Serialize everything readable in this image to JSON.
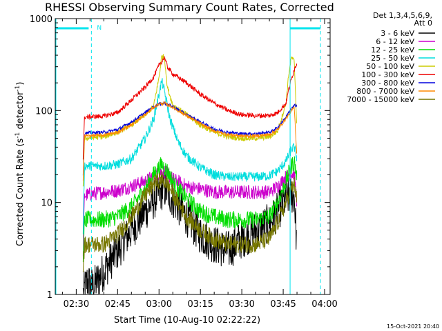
{
  "chart_data": {
    "type": "line",
    "title": "RHESSI Observing Summary Count Rates, Corrected",
    "xlabel": "Start Time (10-Aug-10 02:22:22)",
    "ylabel": "Corrected Count Rate (s",
    "ylabel_sup1": "-1",
    "ylabel_mid": " detector",
    "ylabel_sup2": "-1",
    "ylabel_end": ")",
    "y_scale": "log",
    "ylim": [
      1,
      1000
    ],
    "xlim_minutes": [
      22.4,
      122
    ],
    "x_ticks": [
      {
        "label": "02:30",
        "min": 30
      },
      {
        "label": "02:45",
        "min": 45
      },
      {
        "label": "03:00",
        "min": 60
      },
      {
        "label": "03:15",
        "min": 75
      },
      {
        "label": "03:30",
        "min": 90
      },
      {
        "label": "03:45",
        "min": 105
      },
      {
        "label": "04:00",
        "min": 120
      }
    ],
    "y_ticks": [
      {
        "label": "1",
        "value": 1
      },
      {
        "label": "10",
        "value": 10
      },
      {
        "label": "100",
        "value": 100
      },
      {
        "label": "1000",
        "value": 1000
      }
    ],
    "legend_header": [
      "Det 1,3,4,5,6,9,",
      "Att 0"
    ],
    "timestamp": "15-Oct-2021 20:40",
    "flag_label": "N",
    "legend_placement": "outside-right",
    "grid": false,
    "data_window": [
      32.5,
      110
    ],
    "night_intervals": [
      [
        22.4,
        35.5
      ],
      [
        107.5,
        118.5
      ]
    ],
    "series": [
      {
        "name": "3 - 6 keV",
        "color": "#000000",
        "noise": 0.5,
        "points": [
          [
            32.5,
            1
          ],
          [
            34,
            1.4
          ],
          [
            36,
            1.2
          ],
          [
            40,
            1.8
          ],
          [
            45,
            3
          ],
          [
            50,
            5
          ],
          [
            55,
            8
          ],
          [
            60,
            12.5
          ],
          [
            62,
            14
          ],
          [
            65,
            11
          ],
          [
            70,
            7
          ],
          [
            75,
            4.5
          ],
          [
            80,
            3.5
          ],
          [
            85,
            3
          ],
          [
            90,
            4
          ],
          [
            95,
            5
          ],
          [
            100,
            6
          ],
          [
            103,
            8
          ],
          [
            106,
            11
          ],
          [
            108,
            12
          ],
          [
            109,
            12
          ],
          [
            110,
            3
          ]
        ]
      },
      {
        "name": "6 - 12 keV",
        "color": "#cc00cc",
        "noise": 0.18,
        "points": [
          [
            32.5,
            3
          ],
          [
            33,
            12
          ],
          [
            40,
            13
          ],
          [
            45,
            13.5
          ],
          [
            50,
            15
          ],
          [
            55,
            17
          ],
          [
            60,
            21
          ],
          [
            62,
            22
          ],
          [
            65,
            18
          ],
          [
            70,
            15
          ],
          [
            75,
            14
          ],
          [
            80,
            13
          ],
          [
            85,
            13
          ],
          [
            90,
            13
          ],
          [
            95,
            13
          ],
          [
            100,
            13
          ],
          [
            103,
            15
          ],
          [
            106,
            19
          ],
          [
            108,
            21
          ],
          [
            109,
            20
          ],
          [
            110,
            10
          ]
        ]
      },
      {
        "name": "12 - 25 keV",
        "color": "#00dd00",
        "noise": 0.22,
        "points": [
          [
            32.5,
            2
          ],
          [
            33,
            6.5
          ],
          [
            40,
            6.5
          ],
          [
            45,
            7
          ],
          [
            50,
            9
          ],
          [
            55,
            14
          ],
          [
            58,
            20
          ],
          [
            61,
            26
          ],
          [
            63,
            22
          ],
          [
            66,
            15
          ],
          [
            70,
            11
          ],
          [
            75,
            8
          ],
          [
            80,
            7
          ],
          [
            85,
            6.5
          ],
          [
            90,
            6.5
          ],
          [
            95,
            6.5
          ],
          [
            100,
            7
          ],
          [
            103,
            10
          ],
          [
            106,
            17
          ],
          [
            108,
            25
          ],
          [
            109,
            28
          ],
          [
            110,
            18
          ]
        ]
      },
      {
        "name": "25 - 50 keV",
        "color": "#00dddd",
        "noise": 0.12,
        "points": [
          [
            32.5,
            5
          ],
          [
            33,
            25
          ],
          [
            40,
            25
          ],
          [
            45,
            26
          ],
          [
            50,
            30
          ],
          [
            55,
            50
          ],
          [
            58,
            80
          ],
          [
            60,
            150
          ],
          [
            61,
            210
          ],
          [
            62,
            160
          ],
          [
            64,
            80
          ],
          [
            67,
            45
          ],
          [
            70,
            32
          ],
          [
            75,
            24
          ],
          [
            80,
            20
          ],
          [
            85,
            19
          ],
          [
            90,
            19
          ],
          [
            95,
            19
          ],
          [
            100,
            19.5
          ],
          [
            103,
            22
          ],
          [
            106,
            28
          ],
          [
            108,
            38
          ],
          [
            109,
            40
          ],
          [
            110,
            30
          ]
        ]
      },
      {
        "name": "50 - 100 keV",
        "color": "#cccc00",
        "noise": 0.07,
        "points": [
          [
            32.5,
            15
          ],
          [
            33,
            50
          ],
          [
            40,
            52
          ],
          [
            45,
            58
          ],
          [
            50,
            70
          ],
          [
            55,
            90
          ],
          [
            58,
            110
          ],
          [
            60,
            230
          ],
          [
            61,
            390
          ],
          [
            62,
            380
          ],
          [
            63,
            180
          ],
          [
            65,
            115
          ],
          [
            70,
            90
          ],
          [
            75,
            70
          ],
          [
            80,
            58
          ],
          [
            85,
            52
          ],
          [
            90,
            50
          ],
          [
            95,
            50
          ],
          [
            100,
            52
          ],
          [
            103,
            60
          ],
          [
            106,
            120
          ],
          [
            107,
            250
          ],
          [
            108,
            380
          ],
          [
            109,
            340
          ],
          [
            110,
            60
          ]
        ]
      },
      {
        "name": "100 - 300 keV",
        "color": "#ee0000",
        "noise": 0.06,
        "points": [
          [
            32.5,
            30
          ],
          [
            33,
            85
          ],
          [
            40,
            87
          ],
          [
            45,
            95
          ],
          [
            50,
            130
          ],
          [
            55,
            180
          ],
          [
            58,
            230
          ],
          [
            60,
            310
          ],
          [
            62,
            380
          ],
          [
            63,
            300
          ],
          [
            65,
            250
          ],
          [
            70,
            200
          ],
          [
            75,
            150
          ],
          [
            80,
            120
          ],
          [
            85,
            100
          ],
          [
            90,
            90
          ],
          [
            95,
            88
          ],
          [
            100,
            88
          ],
          [
            103,
            95
          ],
          [
            106,
            120
          ],
          [
            107,
            170
          ],
          [
            108,
            220
          ],
          [
            109,
            280
          ],
          [
            110,
            330
          ]
        ]
      },
      {
        "name": "300 - 800 keV",
        "color": "#0000dd",
        "noise": 0.04,
        "points": [
          [
            32.5,
            20
          ],
          [
            33,
            57
          ],
          [
            40,
            58
          ],
          [
            45,
            62
          ],
          [
            50,
            75
          ],
          [
            55,
            95
          ],
          [
            58,
            110
          ],
          [
            60,
            118
          ],
          [
            62,
            120
          ],
          [
            65,
            110
          ],
          [
            70,
            90
          ],
          [
            75,
            75
          ],
          [
            80,
            63
          ],
          [
            85,
            58
          ],
          [
            90,
            56
          ],
          [
            95,
            56
          ],
          [
            100,
            58
          ],
          [
            103,
            65
          ],
          [
            106,
            85
          ],
          [
            108,
            105
          ],
          [
            109,
            112
          ],
          [
            110,
            115
          ]
        ]
      },
      {
        "name": "800 - 7000 keV",
        "color": "#ff8800",
        "noise": 0.04,
        "points": [
          [
            32.5,
            18
          ],
          [
            33,
            53
          ],
          [
            40,
            54
          ],
          [
            45,
            58
          ],
          [
            50,
            70
          ],
          [
            55,
            90
          ],
          [
            58,
            108
          ],
          [
            60,
            118
          ],
          [
            62,
            120
          ],
          [
            65,
            108
          ],
          [
            70,
            88
          ],
          [
            75,
            72
          ],
          [
            80,
            60
          ],
          [
            85,
            55
          ],
          [
            90,
            53
          ],
          [
            95,
            53
          ],
          [
            100,
            55
          ],
          [
            103,
            62
          ],
          [
            106,
            82
          ],
          [
            108,
            100
          ],
          [
            109,
            108
          ],
          [
            110,
            30
          ]
        ]
      },
      {
        "name": "7000 - 15000 keV",
        "color": "#777700",
        "noise": 0.22,
        "points": [
          [
            32.5,
            2
          ],
          [
            33,
            3.5
          ],
          [
            40,
            3.5
          ],
          [
            45,
            4.5
          ],
          [
            50,
            7
          ],
          [
            55,
            12
          ],
          [
            58,
            16
          ],
          [
            61,
            18
          ],
          [
            63,
            16
          ],
          [
            66,
            11
          ],
          [
            70,
            7
          ],
          [
            75,
            5
          ],
          [
            80,
            4
          ],
          [
            85,
            3.5
          ],
          [
            90,
            3.5
          ],
          [
            95,
            3.5
          ],
          [
            100,
            4
          ],
          [
            103,
            6
          ],
          [
            106,
            10
          ],
          [
            108,
            14
          ],
          [
            109,
            16
          ],
          [
            110,
            10
          ]
        ]
      }
    ]
  }
}
